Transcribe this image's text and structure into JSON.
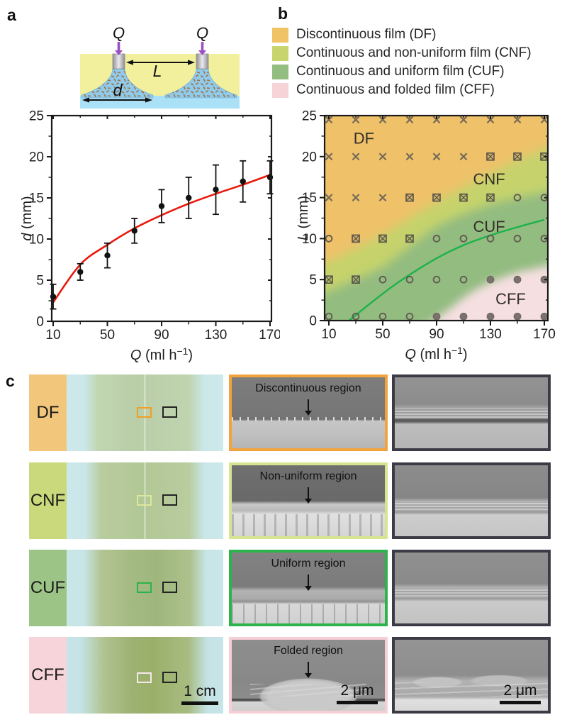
{
  "panel_labels": {
    "a": "a",
    "b": "b",
    "c": "c"
  },
  "schematic": {
    "flow_label": "Q",
    "spacing_label": "L",
    "diameter_label": "d",
    "colors": {
      "air": "#F2EF9D",
      "liquid_layer": "#ABE1F7",
      "spray_cone": "#8FCBED",
      "particles": "#A3713F",
      "nozzle": "#C9C9CD",
      "flow_arrow": "#9B4FC0"
    }
  },
  "legend": {
    "items": [
      {
        "label": "Discontinuous film (DF)",
        "color": "#F0C366"
      },
      {
        "label": "Continuous and non-uniform film (CNF)",
        "color": "#C8D56E"
      },
      {
        "label": "Continuous and uniform film (CUF)",
        "color": "#94BE7F"
      },
      {
        "label": "Continuous and folded film (CFF)",
        "color": "#F6D3D7"
      }
    ]
  },
  "chart_data": [
    {
      "id": "plot_a",
      "type": "scatter",
      "xlabel": "Q (ml h⁻¹)",
      "ylabel": "d (mm)",
      "xlabel_parts": {
        "italic": "Q",
        "text": " (ml h",
        "sup": "−1",
        "close": ")"
      },
      "ylabel_parts": {
        "italic": "d",
        "text": " (mm)"
      },
      "xlim": [
        10,
        170
      ],
      "ylim": [
        0,
        25
      ],
      "xticks": [
        10,
        50,
        90,
        130,
        170
      ],
      "yticks": [
        0,
        5,
        10,
        15,
        20,
        25
      ],
      "xminor": [
        30,
        70,
        110,
        150
      ],
      "yminor": [
        2.5,
        7.5,
        12.5,
        17.5,
        22.5
      ],
      "points": [
        {
          "x": 10,
          "y": 3,
          "err": 1.5
        },
        {
          "x": 30,
          "y": 6,
          "err": 1.0
        },
        {
          "x": 50,
          "y": 8,
          "err": 1.5
        },
        {
          "x": 70,
          "y": 11,
          "err": 1.5
        },
        {
          "x": 90,
          "y": 14,
          "err": 2.0
        },
        {
          "x": 110,
          "y": 15,
          "err": 2.5
        },
        {
          "x": 130,
          "y": 16,
          "err": 3.0
        },
        {
          "x": 150,
          "y": 17,
          "err": 2.5
        },
        {
          "x": 170,
          "y": 17.5,
          "err": 2.0
        }
      ],
      "point_color": "#121212",
      "fit_curve": {
        "color": "#E8190C",
        "points": [
          [
            10,
            2.3
          ],
          [
            30,
            6.9
          ],
          [
            50,
            9.3
          ],
          [
            70,
            11.3
          ],
          [
            90,
            12.9
          ],
          [
            110,
            14.3
          ],
          [
            130,
            15.5
          ],
          [
            150,
            16.6
          ],
          [
            170,
            17.8
          ]
        ]
      }
    },
    {
      "id": "plot_b",
      "type": "heatmap",
      "xlabel": "Q (ml h⁻¹)",
      "ylabel": "L (mm)",
      "xlabel_parts": {
        "italic": "Q",
        "text": " (ml h",
        "sup": "−1",
        "close": ")"
      },
      "ylabel_parts": {
        "italic": "L",
        "text": " (mm)"
      },
      "xlim": [
        10,
        170
      ],
      "ylim": [
        0,
        25
      ],
      "xticks": [
        10,
        50,
        90,
        130,
        170
      ],
      "yticks": [
        0,
        5,
        10,
        15,
        20,
        25
      ],
      "xminor": [
        30,
        70,
        110,
        150
      ],
      "yminor": [
        2.5,
        7.5,
        12.5,
        17.5,
        22.5
      ],
      "region_fills": {
        "DF": "#EFC26A",
        "CNF": "#C6D36C",
        "CUF": "#93BC80",
        "CFF": "#F5DFE1"
      },
      "region_labels": [
        {
          "text": "DF",
          "q": 36,
          "l": 22.2
        },
        {
          "text": "CNF",
          "q": 129,
          "l": 17.2
        },
        {
          "text": "CUF",
          "q": 129,
          "l": 11.4
        },
        {
          "text": "CFF",
          "q": 145,
          "l": 2.6
        }
      ],
      "cnf_boundary": [
        [
          10,
          7.2
        ],
        [
          30,
          8.8
        ],
        [
          50,
          10.5
        ],
        [
          70,
          12.5
        ],
        [
          90,
          14.5
        ],
        [
          110,
          16.3
        ],
        [
          130,
          18
        ],
        [
          150,
          19.6
        ],
        [
          170,
          21
        ]
      ],
      "cuf_boundary": [
        [
          10,
          3.6
        ],
        [
          30,
          5
        ],
        [
          50,
          6.5
        ],
        [
          70,
          9
        ],
        [
          90,
          11.5
        ],
        [
          110,
          13
        ],
        [
          130,
          14.2
        ],
        [
          150,
          15
        ],
        [
          170,
          15.6
        ]
      ],
      "cff_boundary": [
        [
          88,
          0
        ],
        [
          100,
          1.5
        ],
        [
          115,
          3.4
        ],
        [
          130,
          4.7
        ],
        [
          150,
          5.9
        ],
        [
          170,
          6.6
        ]
      ],
      "boundary_curve": {
        "color": "#1CB24B",
        "points": [
          [
            25,
            0
          ],
          [
            40,
            2
          ],
          [
            55,
            3.9
          ],
          [
            70,
            5.6
          ],
          [
            90,
            7.6
          ],
          [
            110,
            9.2
          ],
          [
            130,
            10.4
          ],
          [
            150,
            11.4
          ],
          [
            170,
            12.3
          ]
        ]
      },
      "markers": {
        "marker_color": "#6a6156",
        "q_values": [
          10,
          30,
          50,
          70,
          90,
          110,
          130,
          150,
          170
        ],
        "rows": [
          {
            "L": 24.5,
            "types": [
              "cross",
              "cross",
              "cross",
              "cross",
              "cross",
              "cross",
              "cross",
              "cross",
              "cross"
            ]
          },
          {
            "L": 20,
            "types": [
              "cross",
              "cross",
              "cross",
              "cross",
              "cross",
              "cross",
              "square",
              "square",
              "square"
            ]
          },
          {
            "L": 15,
            "types": [
              "cross",
              "cross",
              "cross",
              "square",
              "square",
              "square",
              "square",
              "open",
              "open"
            ]
          },
          {
            "L": 10,
            "types": [
              "open",
              "square",
              "square",
              "square",
              "open",
              "open",
              "open",
              "open",
              "open"
            ]
          },
          {
            "L": 5,
            "types": [
              "square",
              "square",
              "open",
              "open",
              "open",
              "open",
              "filled",
              "filled",
              "filled"
            ]
          },
          {
            "L": 0.5,
            "types": [
              "open",
              "open",
              "open",
              "open",
              "filled",
              "filled",
              "filled",
              "filled",
              "filled"
            ]
          }
        ]
      }
    }
  ],
  "panel_c": {
    "rows": [
      {
        "code": "DF",
        "label_bg": "#F2C77C",
        "frame_color": "#F2A33C",
        "marker_color": "#F0A024",
        "annotation": "Discontinuous region"
      },
      {
        "code": "CNF",
        "label_bg": "#C9D97B",
        "frame_color": "#D8E48F",
        "marker_color": "#DDE79B",
        "annotation": "Non-uniform region"
      },
      {
        "code": "CUF",
        "label_bg": "#9CC487",
        "frame_color": "#2DB34B",
        "marker_color": "#2DB34B",
        "annotation": "Uniform region"
      },
      {
        "code": "CFF",
        "label_bg": "#F7D4D9",
        "frame_color": "#F6CFD6",
        "marker_color": "#F6E7EA",
        "annotation": "Folded region"
      }
    ],
    "sem_frame_color": "#3B3B45",
    "photo_scalebar_label": "1 cm",
    "sem_scalebar_label": "2 μm"
  }
}
